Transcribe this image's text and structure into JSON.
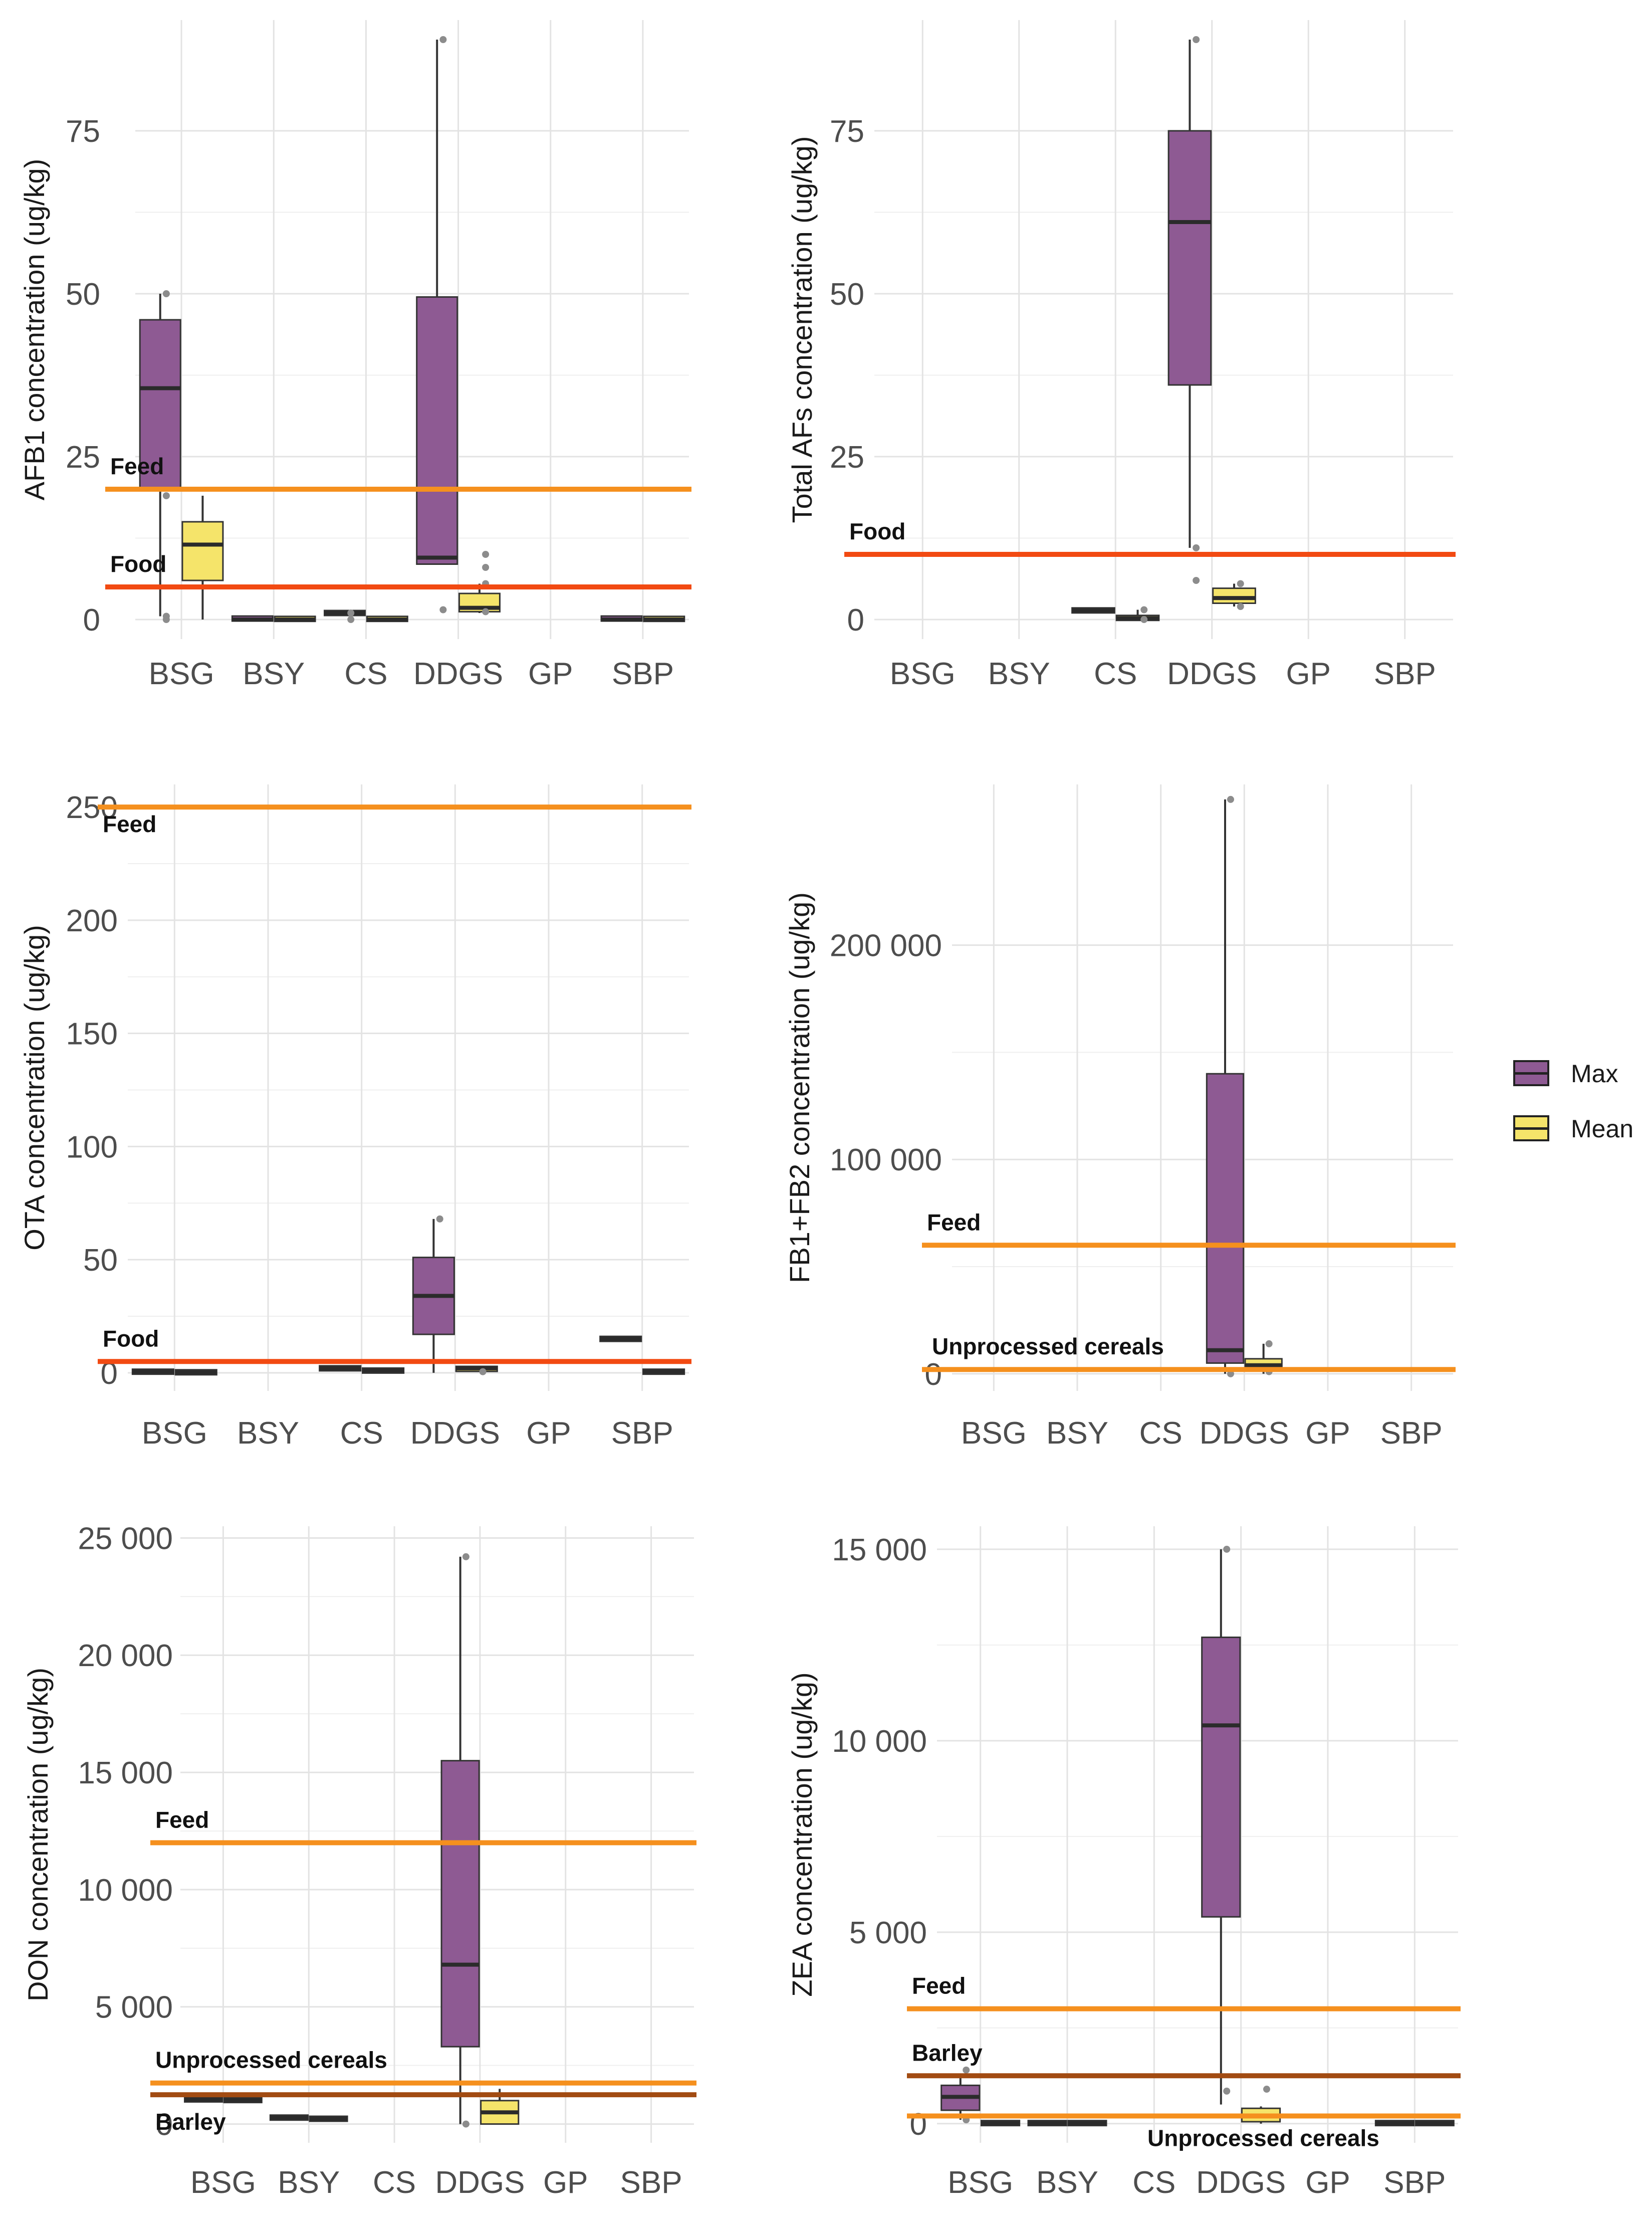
{
  "colors": {
    "max_fill": "#8e5a93",
    "mean_fill": "#f5e46a",
    "feed_line": "#f5901e",
    "food_line": "#f24a12",
    "cereal_line": "#f5901e",
    "barley_line": "#a24b12",
    "grid": "#e3e3e3",
    "whisker": "#333333",
    "median": "#2b2b2b",
    "outlier": "#8c8c8c"
  },
  "legend": {
    "items": [
      {
        "label": "Max",
        "color": "#8e5a93"
      },
      {
        "label": "Mean",
        "color": "#f5e46a"
      }
    ]
  },
  "chart_data": [
    {
      "id": "afb1",
      "type": "boxplot",
      "ylabel": "AFB1 concentration (ug/kg)",
      "categories": [
        "BSG",
        "BSY",
        "CS",
        "DDGS",
        "GP",
        "SBP"
      ],
      "ylim": [
        -3,
        92
      ],
      "yticks": [
        0,
        25,
        50,
        75
      ],
      "ytick_labels": [
        "0",
        "25",
        "50",
        "75"
      ],
      "thresholds": [
        {
          "label": "Feed",
          "value": 20,
          "color": "#f5901e"
        },
        {
          "label": "Food",
          "value": 5,
          "color": "#f24a12"
        }
      ],
      "series": [
        {
          "name": "Max",
          "boxes": [
            {
              "category": "BSG",
              "min": 0.5,
              "q1": 20,
              "median": 35.5,
              "q3": 46,
              "max": 50,
              "outliers": [
                50,
                19,
                0.5,
                0
              ]
            },
            {
              "category": "BSY",
              "min": 0,
              "q1": 0,
              "median": 0,
              "q3": 0.3,
              "max": 0.3,
              "outliers": []
            },
            {
              "category": "CS",
              "min": 0.8,
              "q1": 0.8,
              "median": 1,
              "q3": 1.2,
              "max": 1.2,
              "outliers": [
                1,
                0
              ]
            },
            {
              "category": "DDGS",
              "min": 8.5,
              "q1": 8.5,
              "median": 9.5,
              "q3": 49.5,
              "max": 89,
              "outliers": [
                89,
                1.5
              ]
            },
            {
              "category": "SBP",
              "min": 0,
              "q1": 0,
              "median": 0,
              "q3": 0.3,
              "max": 0.3,
              "outliers": []
            }
          ]
        },
        {
          "name": "Mean",
          "boxes": [
            {
              "category": "BSG",
              "min": 0,
              "q1": 6,
              "median": 11.5,
              "q3": 15,
              "max": 19,
              "outliers": []
            },
            {
              "category": "BSY",
              "min": 0,
              "q1": 0,
              "median": 0,
              "q3": 0.2,
              "max": 0.2,
              "outliers": []
            },
            {
              "category": "CS",
              "min": 0,
              "q1": 0,
              "median": 0,
              "q3": 0.2,
              "max": 0.2,
              "outliers": []
            },
            {
              "category": "DDGS",
              "min": 1,
              "q1": 1.2,
              "median": 1.8,
              "q3": 4,
              "max": 5.5,
              "outliers": [
                10,
                8,
                5.5,
                1.2
              ]
            },
            {
              "category": "SBP",
              "min": 0,
              "q1": 0,
              "median": 0,
              "q3": 0.2,
              "max": 0.2,
              "outliers": []
            }
          ]
        }
      ]
    },
    {
      "id": "total_afs",
      "type": "boxplot",
      "ylabel": "Total AFs concentration (ug/kg)",
      "categories": [
        "BSG",
        "BSY",
        "CS",
        "DDGS",
        "GP",
        "SBP"
      ],
      "ylim": [
        -3,
        92
      ],
      "yticks": [
        0,
        25,
        50,
        75
      ],
      "ytick_labels": [
        "0",
        "25",
        "50",
        "75"
      ],
      "thresholds": [
        {
          "label": "Food",
          "value": 10,
          "color": "#f24a12"
        }
      ],
      "series": [
        {
          "name": "Max",
          "boxes": [
            {
              "category": "CS",
              "min": 1.2,
              "q1": 1.2,
              "median": 1.4,
              "q3": 1.6,
              "max": 1.6,
              "outliers": []
            },
            {
              "category": "DDGS",
              "min": 11,
              "q1": 36,
              "median": 61,
              "q3": 75,
              "max": 89,
              "outliers": [
                89,
                11,
                6
              ]
            }
          ]
        },
        {
          "name": "Mean",
          "boxes": [
            {
              "category": "CS",
              "min": 0,
              "q1": 0,
              "median": 0.2,
              "q3": 0.5,
              "max": 1.5,
              "outliers": [
                1.5,
                0
              ]
            },
            {
              "category": "DDGS",
              "min": 2,
              "q1": 2.5,
              "median": 3.3,
              "q3": 4.8,
              "max": 5.5,
              "outliers": [
                5.5,
                2
              ]
            }
          ]
        }
      ]
    },
    {
      "id": "ota",
      "type": "boxplot",
      "ylabel": "OTA concentration (ug/kg)",
      "categories": [
        "BSG",
        "BSY",
        "CS",
        "DDGS",
        "GP",
        "SBP"
      ],
      "ylim": [
        -8,
        260
      ],
      "yticks": [
        0,
        50,
        100,
        150,
        200,
        250
      ],
      "ytick_labels": [
        "0",
        "50",
        "100",
        "150",
        "200",
        "250"
      ],
      "thresholds": [
        {
          "label": "Feed",
          "value": 250,
          "color": "#f5901e"
        },
        {
          "label": "Food",
          "value": 5,
          "color": "#f24a12"
        }
      ],
      "series": [
        {
          "name": "Max",
          "boxes": [
            {
              "category": "BSG",
              "min": 0,
              "q1": 0,
              "median": 0.5,
              "q3": 1,
              "max": 1,
              "outliers": []
            },
            {
              "category": "CS",
              "min": 1.5,
              "q1": 1.5,
              "median": 2,
              "q3": 2.5,
              "max": 2.5,
              "outliers": []
            },
            {
              "category": "DDGS",
              "min": 0,
              "q1": 17,
              "median": 34,
              "q3": 51,
              "max": 68,
              "outliers": [
                68
              ]
            },
            {
              "category": "SBP",
              "min": 14,
              "q1": 14,
              "median": 15,
              "q3": 16,
              "max": 16,
              "outliers": []
            }
          ]
        },
        {
          "name": "Mean",
          "boxes": [
            {
              "category": "BSG",
              "min": 0,
              "q1": 0,
              "median": 0.2,
              "q3": 0.5,
              "max": 0.5,
              "outliers": []
            },
            {
              "category": "CS",
              "min": 0.5,
              "q1": 0.5,
              "median": 1,
              "q3": 1.5,
              "max": 1.5,
              "outliers": []
            },
            {
              "category": "DDGS",
              "min": 0.5,
              "q1": 1,
              "median": 2,
              "q3": 2.5,
              "max": 2.5,
              "outliers": [
                0.5
              ]
            },
            {
              "category": "SBP",
              "min": 0,
              "q1": 0,
              "median": 0.5,
              "q3": 1,
              "max": 1,
              "outliers": []
            }
          ]
        }
      ]
    },
    {
      "id": "fb",
      "type": "boxplot",
      "ylabel": "FB1+FB2 concentration (ug/kg)",
      "categories": [
        "BSG",
        "BSY",
        "CS",
        "DDGS",
        "GP",
        "SBP"
      ],
      "ylim": [
        -8000,
        275000
      ],
      "yticks": [
        0,
        100000,
        200000
      ],
      "ytick_labels": [
        "0",
        "100 000",
        "200 000"
      ],
      "thresholds": [
        {
          "label": "Feed",
          "value": 60000,
          "color": "#f5901e"
        },
        {
          "label": "Unprocessed cereals",
          "value": 2000,
          "color": "#f5901e"
        }
      ],
      "series": [
        {
          "name": "Max",
          "boxes": [
            {
              "category": "DDGS",
              "min": 0,
              "q1": 5000,
              "median": 11000,
              "q3": 140000,
              "max": 268000,
              "outliers": [
                268000,
                0
              ]
            }
          ]
        },
        {
          "name": "Mean",
          "boxes": [
            {
              "category": "DDGS",
              "min": 0,
              "q1": 1500,
              "median": 4000,
              "q3": 7000,
              "max": 14000,
              "outliers": [
                14000,
                1000
              ]
            }
          ]
        }
      ]
    },
    {
      "id": "don",
      "type": "boxplot",
      "ylabel": "DON concentration (ug/kg)",
      "categories": [
        "BSG",
        "BSY",
        "CS",
        "DDGS",
        "GP",
        "SBP"
      ],
      "ylim": [
        -800,
        25500
      ],
      "yticks": [
        0,
        5000,
        10000,
        15000,
        20000,
        25000
      ],
      "ytick_labels": [
        "0",
        "5 000",
        "10 000",
        "15 000",
        "20 000",
        "25 000"
      ],
      "thresholds": [
        {
          "label": "Feed",
          "value": 12000,
          "color": "#f5901e"
        },
        {
          "label": "Unprocessed cereals",
          "value": 1750,
          "color": "#f5901e"
        },
        {
          "label": "Barley",
          "value": 1250,
          "color": "#a24b12"
        }
      ],
      "series": [
        {
          "name": "Max",
          "boxes": [
            {
              "category": "BSG",
              "min": 1000,
              "q1": 1000,
              "median": 1050,
              "q3": 1100,
              "max": 1100,
              "outliers": []
            },
            {
              "category": "BSY",
              "min": 250,
              "q1": 250,
              "median": 280,
              "q3": 300,
              "max": 300,
              "outliers": []
            },
            {
              "category": "DDGS",
              "min": 0,
              "q1": 3300,
              "median": 6800,
              "q3": 15500,
              "max": 24200,
              "outliers": [
                24200,
                0
              ]
            }
          ]
        },
        {
          "name": "Mean",
          "boxes": [
            {
              "category": "BSG",
              "min": 1000,
              "q1": 1000,
              "median": 1020,
              "q3": 1050,
              "max": 1050,
              "outliers": []
            },
            {
              "category": "BSY",
              "min": 200,
              "q1": 200,
              "median": 220,
              "q3": 250,
              "max": 250,
              "outliers": []
            },
            {
              "category": "DDGS",
              "min": 0,
              "q1": 0,
              "median": 500,
              "q3": 1000,
              "max": 1500,
              "outliers": []
            }
          ]
        }
      ]
    },
    {
      "id": "zea",
      "type": "boxplot",
      "ylabel": "ZEA concentration (ug/kg)",
      "categories": [
        "BSG",
        "BSY",
        "CS",
        "DDGS",
        "GP",
        "SBP"
      ],
      "ylim": [
        -500,
        15600
      ],
      "yticks": [
        0,
        5000,
        10000,
        15000
      ],
      "ytick_labels": [
        "0",
        "5 000",
        "10 000",
        "15 000"
      ],
      "thresholds": [
        {
          "label": "Feed",
          "value": 3000,
          "color": "#f5901e"
        },
        {
          "label": "Barley",
          "value": 1250,
          "color": "#a24b12"
        },
        {
          "label": "Unprocessed cereals",
          "value": 200,
          "color": "#f5901e"
        }
      ],
      "series": [
        {
          "name": "Max",
          "boxes": [
            {
              "category": "BSG",
              "min": 100,
              "q1": 350,
              "median": 700,
              "q3": 1000,
              "max": 1300,
              "outliers": [
                1400,
                100
              ]
            },
            {
              "category": "BSY",
              "min": 0,
              "q1": 0,
              "median": 10,
              "q3": 30,
              "max": 30,
              "outliers": []
            },
            {
              "category": "DDGS",
              "min": 500,
              "q1": 5400,
              "median": 10400,
              "q3": 12700,
              "max": 15000,
              "outliers": [
                15000,
                850
              ]
            },
            {
              "category": "SBP",
              "min": 0,
              "q1": 0,
              "median": 10,
              "q3": 30,
              "max": 30,
              "outliers": []
            }
          ]
        },
        {
          "name": "Mean",
          "boxes": [
            {
              "category": "BSG",
              "min": 0,
              "q1": 0,
              "median": 10,
              "q3": 30,
              "max": 30,
              "outliers": []
            },
            {
              "category": "BSY",
              "min": 0,
              "q1": 0,
              "median": 10,
              "q3": 30,
              "max": 30,
              "outliers": []
            },
            {
              "category": "DDGS",
              "min": 0,
              "q1": 50,
              "median": 200,
              "q3": 400,
              "max": 450,
              "outliers": [
                900
              ]
            },
            {
              "category": "SBP",
              "min": 0,
              "q1": 0,
              "median": 10,
              "q3": 30,
              "max": 30,
              "outliers": []
            }
          ]
        }
      ]
    }
  ]
}
